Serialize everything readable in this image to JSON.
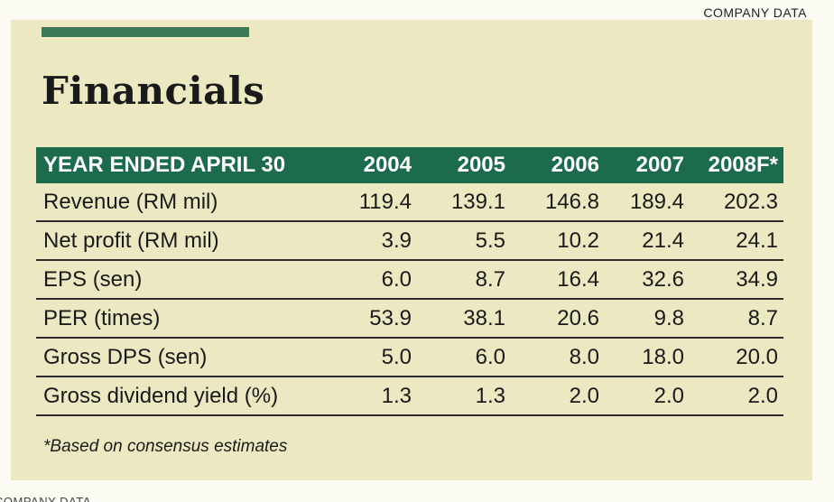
{
  "header": {
    "section_label": "COMPANY DATA"
  },
  "title": "Financials",
  "table": {
    "columns": [
      "YEAR ENDED APRIL 30",
      "2004",
      "2005",
      "2006",
      "2007",
      "2008F*"
    ],
    "rows": [
      {
        "label": "Revenue (RM mil)",
        "values": [
          "119.4",
          "139.1",
          "146.8",
          "189.4",
          "202.3"
        ]
      },
      {
        "label": "Net profit (RM mil)",
        "values": [
          "3.9",
          "5.5",
          "10.2",
          "21.4",
          "24.1"
        ]
      },
      {
        "label": "EPS (sen)",
        "values": [
          "6.0",
          "8.7",
          "16.4",
          "32.6",
          "34.9"
        ]
      },
      {
        "label": "PER (times)",
        "values": [
          "53.9",
          "38.1",
          "20.6",
          "9.8",
          "8.7"
        ]
      },
      {
        "label": "Gross DPS (sen)",
        "values": [
          "5.0",
          "6.0",
          "8.0",
          "18.0",
          "20.0"
        ]
      },
      {
        "label": "Gross dividend yield (%)",
        "values": [
          "1.3",
          "1.3",
          "2.0",
          "2.0",
          "2.0"
        ]
      }
    ]
  },
  "footnote": "*Based on consensus estimates",
  "bottom_cutoff_text": "COMPANY DATA",
  "colors": {
    "header_green": "#1d6b4d",
    "accent_bar": "#3a7a56",
    "panel": "#ebe8c2"
  }
}
